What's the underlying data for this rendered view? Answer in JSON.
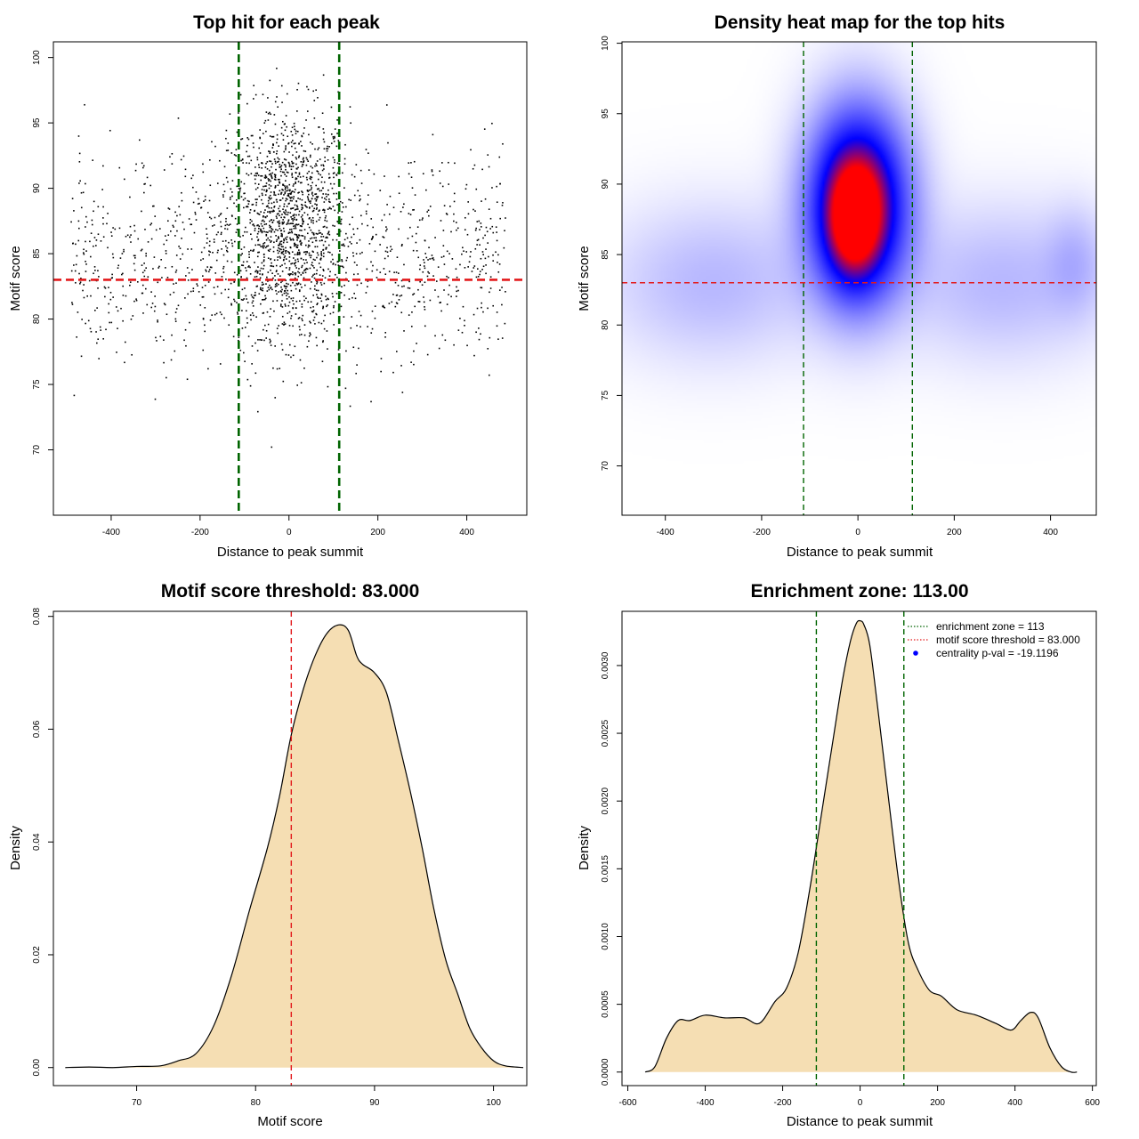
{
  "chart_data": [
    {
      "id": "scatter",
      "type": "scatter",
      "title": "Top hit for each peak",
      "xlabel": "Distance to peak summit",
      "ylabel": "Motif score",
      "xlim": [
        -530,
        535
      ],
      "ylim": [
        65,
        101.2
      ],
      "xticks": [
        -400,
        -200,
        0,
        200,
        400
      ],
      "yticks": [
        70,
        75,
        80,
        85,
        90,
        95,
        100
      ],
      "grid": false,
      "points_model": {
        "n_central": 1300,
        "central_x_sd": 68,
        "central_y_mean": 87.5,
        "central_y_sd": 4.3,
        "n_uniform": 1100,
        "uniform_x_range": [
          -490,
          490
        ],
        "uniform_y_mean": 84.5,
        "uniform_y_sd": 4.0
      },
      "vlines": [
        -113,
        113
      ],
      "hline": 83,
      "colors": {
        "points": "#000000",
        "vlines": "#006400",
        "hline": "#e31a1c"
      }
    },
    {
      "id": "heatmap",
      "type": "heatmap",
      "title": "Density heat map for the top hits",
      "xlabel": "Distance to peak summit",
      "ylabel": "Motif score",
      "xlim": [
        -490,
        495
      ],
      "ylim": [
        66.5,
        100.1
      ],
      "xticks": [
        -400,
        -200,
        0,
        200,
        400
      ],
      "yticks": [
        70,
        75,
        80,
        85,
        90,
        95,
        100
      ],
      "density_blobs": [
        {
          "x": 0,
          "y": 88.5,
          "sx": 65,
          "sy": 4.2,
          "w": 1.0
        },
        {
          "x": -10,
          "y": 87,
          "sx": 35,
          "sy": 2.6,
          "w": 0.35
        },
        {
          "x": -300,
          "y": 83,
          "sx": 140,
          "sy": 3.5,
          "w": 0.1
        },
        {
          "x": 300,
          "y": 83,
          "sx": 140,
          "sy": 3.5,
          "w": 0.1
        },
        {
          "x": 450,
          "y": 84.5,
          "sx": 40,
          "sy": 2.5,
          "w": 0.08
        }
      ],
      "vlines": [
        -113,
        113
      ],
      "hline": 83,
      "colors": {
        "low": "#ffffff",
        "mid": "#0000ff",
        "high": "#ff0000",
        "vlines": "#006400",
        "hline": "#e31a1c"
      }
    },
    {
      "id": "score_density",
      "type": "area",
      "title": "Motif score threshold: 83.000",
      "xlabel": "Motif score",
      "ylabel": "Density",
      "xlim": [
        63,
        102.8
      ],
      "ylim": [
        -0.0032,
        0.0809
      ],
      "xticks": [
        70,
        80,
        90,
        100
      ],
      "yticks": [
        0.0,
        0.02,
        0.04,
        0.06,
        0.08
      ],
      "ytick_labels": [
        "0.00",
        "0.02",
        "0.04",
        "0.06",
        "0.08"
      ],
      "x": [
        64,
        66,
        68,
        70,
        72,
        73.5,
        75,
        76.5,
        78,
        79.5,
        81,
        82,
        83,
        84,
        85,
        86,
        87,
        87.8,
        88.5,
        89,
        90,
        91,
        92,
        93,
        94,
        95,
        96,
        97,
        98,
        99,
        100,
        101,
        102.5
      ],
      "y": [
        0.0,
        0.0001,
        0.0,
        0.0002,
        0.0003,
        0.0012,
        0.0025,
        0.0075,
        0.0165,
        0.028,
        0.039,
        0.048,
        0.059,
        0.067,
        0.073,
        0.077,
        0.0785,
        0.0775,
        0.073,
        0.0715,
        0.07,
        0.0665,
        0.058,
        0.049,
        0.039,
        0.028,
        0.019,
        0.013,
        0.007,
        0.0035,
        0.0012,
        0.0003,
        0.0
      ],
      "vline": 83,
      "colors": {
        "fill": "#f5deb3",
        "line": "#000000",
        "vline": "#e31a1c"
      }
    },
    {
      "id": "distance_density",
      "type": "area",
      "title": "Enrichment zone: 113.00",
      "xlabel": "Distance to peak summit",
      "ylabel": "Density",
      "xlim": [
        -615,
        610
      ],
      "ylim": [
        -0.0001,
        0.0034
      ],
      "xticks": [
        -600,
        -400,
        -200,
        0,
        200,
        400,
        600
      ],
      "yticks": [
        0,
        0.0005,
        0.001,
        0.0015,
        0.002,
        0.0025,
        0.003
      ],
      "ytick_labels": [
        "0.0000",
        "0.0005",
        "0.0010",
        "0.0015",
        "0.0020",
        "0.0025",
        "0.0030"
      ],
      "x": [
        -555,
        -530,
        -500,
        -470,
        -440,
        -400,
        -350,
        -300,
        -260,
        -220,
        -190,
        -160,
        -130,
        -100,
        -70,
        -45,
        -25,
        -10,
        0,
        10,
        25,
        45,
        70,
        100,
        125,
        150,
        180,
        210,
        250,
        300,
        350,
        390,
        415,
        440,
        460,
        490,
        520,
        545,
        560
      ],
      "y": [
        0.0,
        4e-05,
        0.00025,
        0.00038,
        0.00038,
        0.00042,
        0.0004,
        0.0004,
        0.00036,
        0.00052,
        0.00062,
        0.00088,
        0.00135,
        0.0019,
        0.00245,
        0.0029,
        0.00318,
        0.00331,
        0.00333,
        0.0033,
        0.00315,
        0.0027,
        0.0021,
        0.0014,
        0.00095,
        0.00075,
        0.0006,
        0.00056,
        0.00046,
        0.00042,
        0.00036,
        0.00031,
        0.00038,
        0.00044,
        0.0004,
        0.00018,
        4e-05,
        0.0,
        0.0
      ],
      "vlines": [
        -113,
        113
      ],
      "colors": {
        "fill": "#f5deb3",
        "line": "#000000",
        "vlines": "#006400",
        "legend_hline": "#e31a1c",
        "legend_point": "#0000ff"
      },
      "legend": {
        "position": "top-right",
        "entries": [
          {
            "label": "enrichment zone = 113",
            "style": "green-dotted"
          },
          {
            "label": "motif score threshold = 83.000",
            "style": "red-dotted"
          },
          {
            "label": "centrality p-val = -19.1196",
            "style": "blue-point"
          }
        ]
      }
    }
  ]
}
